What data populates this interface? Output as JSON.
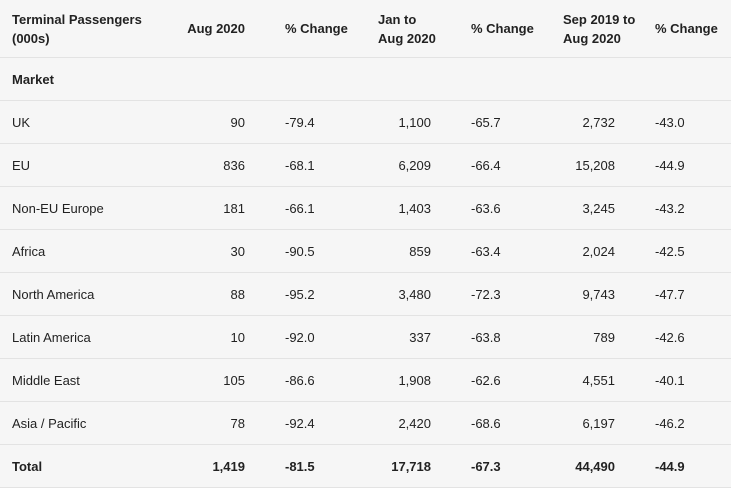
{
  "headers": {
    "col0": [
      "Terminal Passengers",
      "(000s)"
    ],
    "col1": [
      "Aug 2020"
    ],
    "col2": [
      "% Change"
    ],
    "col3": [
      "Jan to",
      "Aug 2020"
    ],
    "col4": [
      "% Change"
    ],
    "col5": [
      "Sep 2019 to",
      "Aug 2020"
    ],
    "col6": [
      "% Change"
    ]
  },
  "section_label": "Market",
  "rows": [
    {
      "market": "UK",
      "aug": "90",
      "aug_pct": "-79.4",
      "ytd": "1,100",
      "ytd_pct": "-65.7",
      "r12": "2,732",
      "r12_pct": "-43.0"
    },
    {
      "market": "EU",
      "aug": "836",
      "aug_pct": "-68.1",
      "ytd": "6,209",
      "ytd_pct": "-66.4",
      "r12": "15,208",
      "r12_pct": "-44.9"
    },
    {
      "market": "Non-EU Europe",
      "aug": "181",
      "aug_pct": "-66.1",
      "ytd": "1,403",
      "ytd_pct": "-63.6",
      "r12": "3,245",
      "r12_pct": "-43.2"
    },
    {
      "market": "Africa",
      "aug": "30",
      "aug_pct": "-90.5",
      "ytd": "859",
      "ytd_pct": "-63.4",
      "r12": "2,024",
      "r12_pct": "-42.5"
    },
    {
      "market": "North America",
      "aug": "88",
      "aug_pct": "-95.2",
      "ytd": "3,480",
      "ytd_pct": "-72.3",
      "r12": "9,743",
      "r12_pct": "-47.7"
    },
    {
      "market": "Latin America",
      "aug": "10",
      "aug_pct": "-92.0",
      "ytd": "337",
      "ytd_pct": "-63.8",
      "r12": "789",
      "r12_pct": "-42.6"
    },
    {
      "market": "Middle East",
      "aug": "105",
      "aug_pct": "-86.6",
      "ytd": "1,908",
      "ytd_pct": "-62.6",
      "r12": "4,551",
      "r12_pct": "-40.1"
    },
    {
      "market": "Asia / Pacific",
      "aug": "78",
      "aug_pct": "-92.4",
      "ytd": "2,420",
      "ytd_pct": "-68.6",
      "r12": "6,197",
      "r12_pct": "-46.2"
    }
  ],
  "total": {
    "market": "Total",
    "aug": "1,419",
    "aug_pct": "-81.5",
    "ytd": "17,718",
    "ytd_pct": "-67.3",
    "r12": "44,490",
    "r12_pct": "-44.9"
  }
}
